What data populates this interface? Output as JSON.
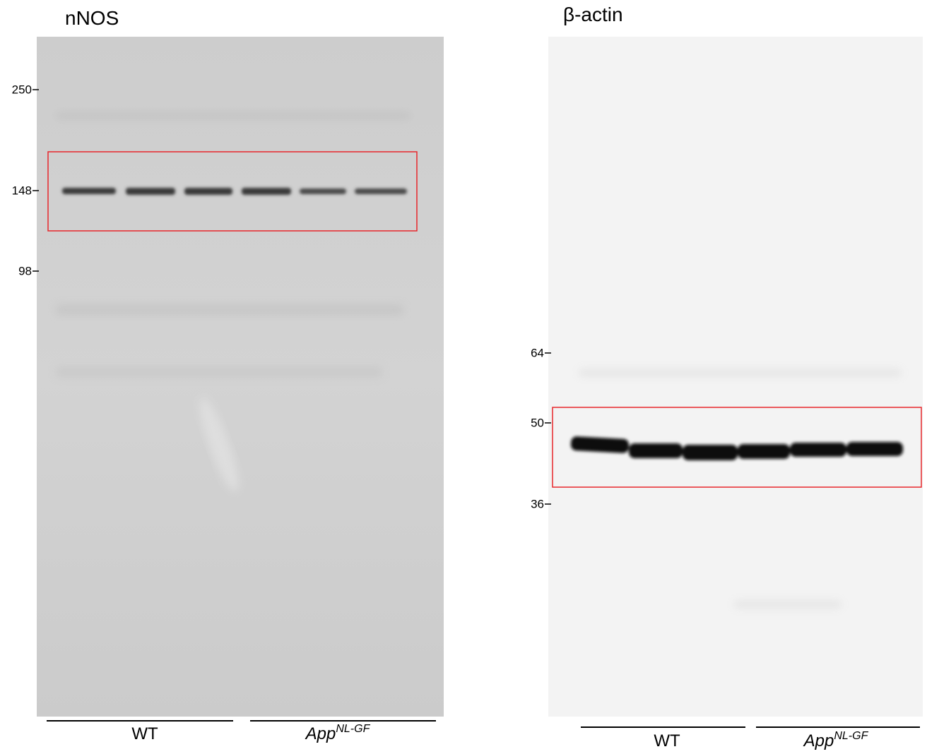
{
  "panels": [
    {
      "title": "nNOS",
      "markers": [
        "250",
        "148",
        "98"
      ],
      "groups": [
        {
          "label": "WT"
        },
        {
          "label": "App",
          "superscript": "NL-GF"
        }
      ]
    },
    {
      "title": "β-actin",
      "markers": [
        "64",
        "50",
        "36"
      ],
      "groups": [
        {
          "label": "WT"
        },
        {
          "label": "App",
          "superscript": "NL-GF"
        }
      ]
    }
  ]
}
